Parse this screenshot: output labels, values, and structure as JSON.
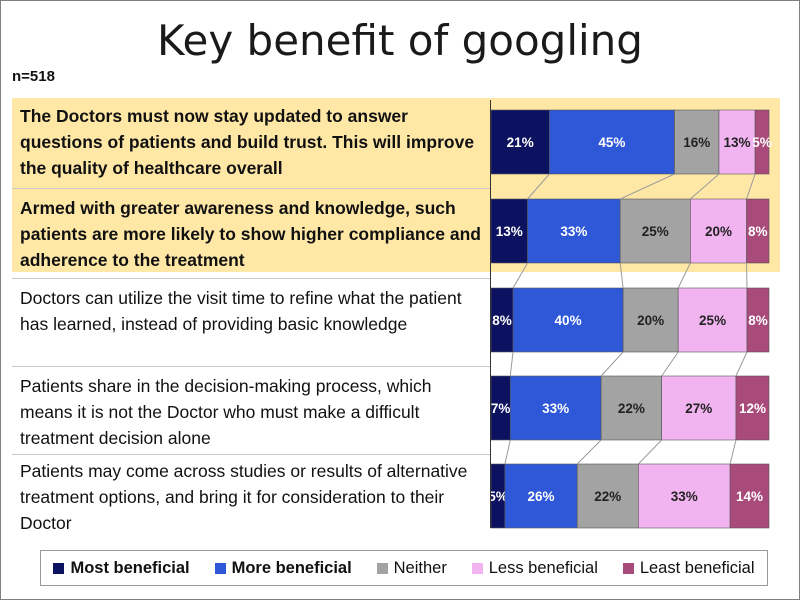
{
  "title": "Key benefit of googling",
  "sample": "n=518",
  "chart_data": {
    "type": "bar",
    "orientation": "horizontal",
    "stacked": "100%",
    "categories": [
      "The Doctors must now stay updated to answer questions of patients and build trust. This will improve the quality of healthcare overall",
      "Armed with greater awareness and knowledge, such patients are more likely to show higher compliance and adherence to the treatment",
      "Doctors can utilize the visit time to refine what the patient has learned, instead of providing basic knowledge",
      "Patients share in the decision-making process, which means it is not the Doctor who must make a difficult treatment decision alone",
      "Patients may come across studies or results of alternative treatment options, and bring it for consideration to their Doctor"
    ],
    "highlighted": [
      0,
      1
    ],
    "series": [
      {
        "name": "Most beneficial",
        "color": "#0d1260",
        "values": [
          21,
          13,
          8,
          7,
          5
        ]
      },
      {
        "name": "More beneficial",
        "color": "#2f58d8",
        "values": [
          45,
          33,
          40,
          33,
          26
        ]
      },
      {
        "name": "Neither",
        "color": "#a3a3a3",
        "values": [
          16,
          25,
          20,
          22,
          22
        ]
      },
      {
        "name": "Less beneficial",
        "color": "#f2b4f0",
        "values": [
          13,
          20,
          25,
          27,
          33
        ]
      },
      {
        "name": "Least beneficial",
        "color": "#a84a7a",
        "values": [
          5,
          8,
          8,
          12,
          14
        ]
      }
    ],
    "legend_position": "bottom"
  }
}
